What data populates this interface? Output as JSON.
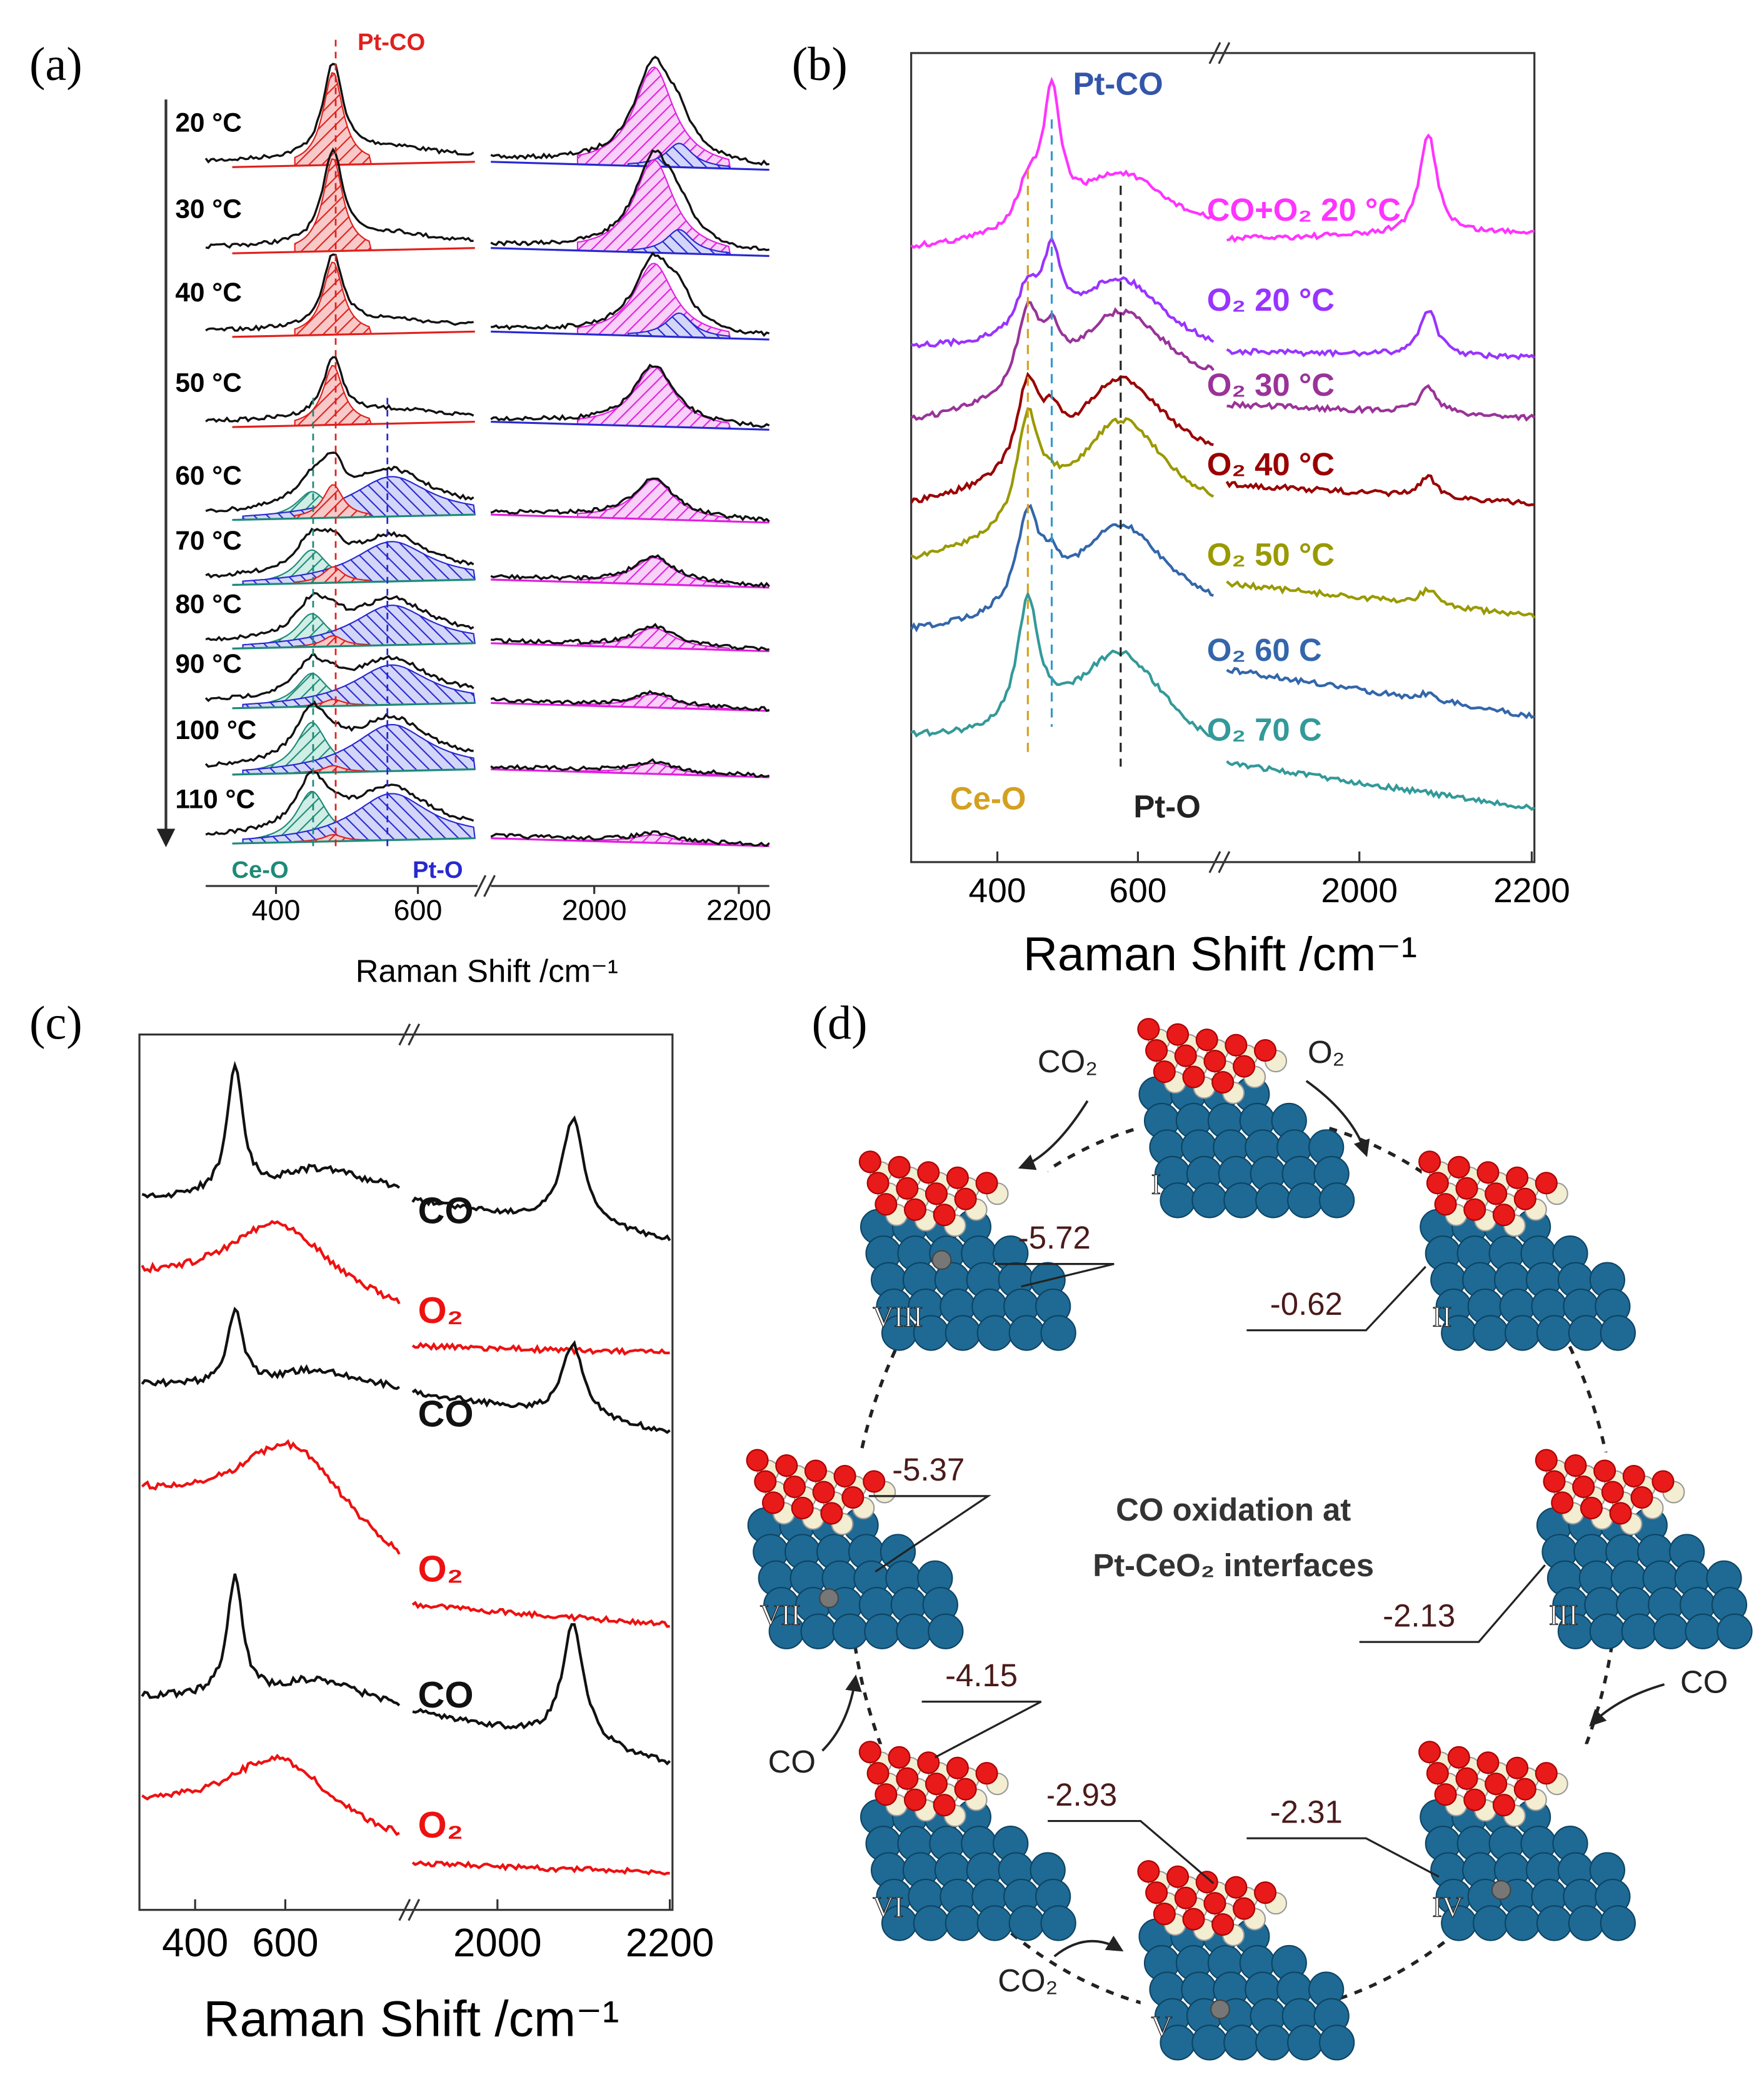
{
  "panel_a": {
    "label": "(a)",
    "temperatures": [
      "20 °C",
      "30 °C",
      "40 °C",
      "50 °C",
      "60 °C",
      "70 °C",
      "80 °C",
      "90 °C",
      "100 °C",
      "110 °C"
    ],
    "peak_labels": {
      "pt_co": "Pt-CO",
      "ce_o": "Ce-O",
      "pt_o": "Pt-O"
    },
    "x_ticks": [
      "400",
      "600",
      "2000",
      "2200"
    ],
    "x_axis_label": "Raman Shift /cm⁻¹"
  },
  "panel_b": {
    "label": "(b)",
    "traces": [
      "CO+O₂ 20 °C",
      "O₂ 20 °C",
      "O₂ 30 °C",
      "O₂ 40 °C",
      "O₂ 50 °C",
      "O₂ 60 C",
      "O₂ 70 C"
    ],
    "peak_labels": {
      "pt_co": "Pt-CO",
      "ce_o": "Ce-O",
      "pt_o": "Pt-O"
    },
    "x_ticks": [
      "400",
      "600",
      "2000",
      "2200"
    ],
    "x_axis_label": "Raman Shift /cm⁻¹"
  },
  "panel_c": {
    "label": "(c)",
    "traces": [
      "CO",
      "O₂",
      "CO",
      "O₂",
      "CO",
      "O₂"
    ],
    "x_ticks": [
      "400",
      "600",
      "2000",
      "2200"
    ],
    "x_axis_label": "Raman Shift /cm⁻¹"
  },
  "panel_d": {
    "label": "(d)",
    "title_lines": [
      "CO oxidation at",
      "Pt-CeO₂ interfaces"
    ],
    "states": [
      {
        "numeral": "I"
      },
      {
        "numeral": "II",
        "energy": "-0.62"
      },
      {
        "numeral": "III",
        "energy": "-2.13"
      },
      {
        "numeral": "IV",
        "energy": "-2.31"
      },
      {
        "numeral": "V",
        "energy": "-2.93"
      },
      {
        "numeral": "VI",
        "energy": "-4.15"
      },
      {
        "numeral": "VII",
        "energy": "-5.37"
      },
      {
        "numeral": "VIII",
        "energy": "-5.72"
      }
    ],
    "molecules": [
      "CO₂",
      "O₂",
      "CO",
      "CO",
      "CO₂"
    ]
  }
}
